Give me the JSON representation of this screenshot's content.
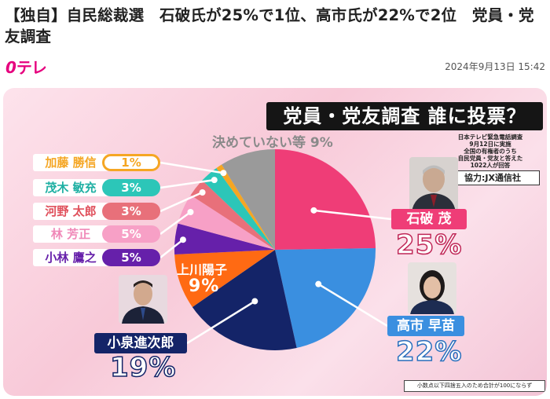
{
  "headline": "【独自】自民総裁選　石破氏が25%で1位、高市氏が22%で2位　党員・党友調査",
  "brand": {
    "logo_zero": "0",
    "logo_text": "テレ"
  },
  "timestamp": "2024年9月13日 15:42",
  "infographic": {
    "banner": "党員・党友調査 誰に投票？",
    "survey_note": [
      "日本テレビ緊急電話調査",
      "9月12日に実施",
      "全国の有権者のうち",
      "自民党員・党友と答えた",
      "1022人が回答"
    ],
    "credit": "協力:JX通信社",
    "footnote": "小数点以下四捨五入のため合計が100にならず",
    "undecided_label": "決めていない等",
    "undecided_value": "9%"
  },
  "chart_data": {
    "type": "pie",
    "title": "党員・党友調査 誰に投票？",
    "slices": [
      {
        "name": "石破 茂",
        "value": 25,
        "label": "25%",
        "color": "#ef3d77"
      },
      {
        "name": "高市 早苗",
        "value": 22,
        "label": "22%",
        "color": "#3a8fe0"
      },
      {
        "name": "小泉進次郎",
        "value": 19,
        "label": "19%",
        "color": "#142468"
      },
      {
        "name": "上川陽子",
        "value": 9,
        "label": "9%",
        "color": "#ff6a13"
      },
      {
        "name": "小林 鷹之",
        "value": 5,
        "label": "5%",
        "color": "#6620aa"
      },
      {
        "name": "林 芳正",
        "value": 5,
        "label": "5%",
        "color": "#f7a0c6"
      },
      {
        "name": "河野 太郎",
        "value": 3,
        "label": "3%",
        "color": "#e8707a"
      },
      {
        "name": "茂木 敏充",
        "value": 3,
        "label": "3%",
        "color": "#2cc6b8"
      },
      {
        "name": "加藤 勝信",
        "value": 1,
        "label": "1%",
        "color": "#f5a623"
      },
      {
        "name": "決めていない等",
        "value": 9,
        "label": "9%",
        "color": "#9a9a9a"
      }
    ],
    "start_angle": "12 o'clock",
    "direction": "clockwise"
  }
}
